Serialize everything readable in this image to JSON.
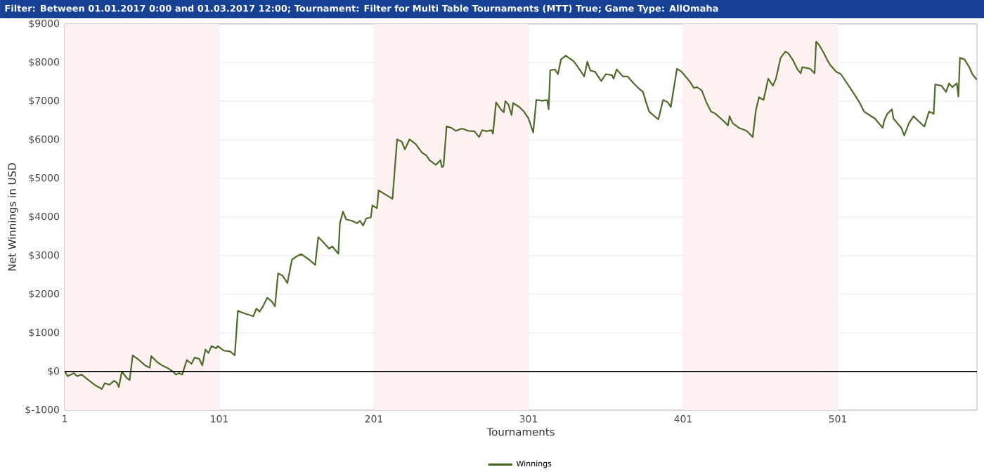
{
  "chart_data": {
    "type": "line",
    "title": "Filter: Between 01.01.2017 0:00 and 01.03.2017 12:00; Tournament: Filter for Multi Table Tournaments (MTT) True; Game Type: AllOmaha",
    "xlabel": "Tournaments",
    "ylabel": "Net Winnings in USD",
    "x": [
      1,
      3,
      7,
      9,
      12,
      17,
      21,
      25,
      27,
      30,
      33,
      35,
      36,
      38,
      41,
      43,
      45,
      49,
      53,
      56,
      57,
      61,
      64,
      68,
      71,
      73,
      75,
      77,
      80,
      83,
      85,
      88,
      90,
      92,
      94,
      96,
      99,
      100,
      104,
      108,
      111,
      113,
      117,
      123,
      125,
      127,
      129,
      132,
      135,
      137,
      139,
      142,
      145,
      148,
      151,
      154,
      159,
      163,
      165,
      168,
      172,
      174,
      178,
      179,
      181,
      183,
      187,
      190,
      192,
      194,
      196,
      199,
      200,
      203,
      204,
      209,
      213,
      216,
      219,
      221,
      224,
      228,
      232,
      235,
      237,
      241,
      244,
      245,
      246,
      248,
      251,
      254,
      258,
      262,
      266,
      269,
      271,
      274,
      277,
      278,
      280,
      283,
      285,
      286,
      288,
      290,
      291,
      295,
      298,
      301,
      304,
      306,
      310,
      313,
      314,
      315,
      318,
      320,
      322,
      325,
      327,
      330,
      333,
      337,
      339,
      341,
      344,
      348,
      351,
      355,
      356,
      358,
      362,
      365,
      369,
      372,
      375,
      377,
      379,
      383,
      385,
      388,
      391,
      393,
      397,
      400,
      405,
      408,
      410,
      413,
      416,
      419,
      422,
      427,
      430,
      431,
      433,
      437,
      442,
      446,
      448,
      450,
      453,
      456,
      459,
      461,
      464,
      467,
      469,
      472,
      475,
      477,
      478,
      483,
      486,
      487,
      489,
      492,
      494,
      496,
      500,
      503,
      507,
      511,
      515,
      518,
      521,
      525,
      530,
      531,
      533,
      536,
      537,
      542,
      544,
      547,
      550,
      553,
      557,
      560,
      563,
      564,
      568,
      571,
      573,
      575,
      578,
      579,
      580,
      583,
      586,
      588,
      591
    ],
    "series": [
      {
        "name": "Winnings",
        "color": "#4f6b2c",
        "values": [
          0,
          -120,
          -40,
          -120,
          -80,
          -240,
          -360,
          -450,
          -300,
          -340,
          -240,
          -300,
          -400,
          0,
          -160,
          -220,
          420,
          300,
          160,
          100,
          400,
          240,
          160,
          80,
          0,
          -80,
          -40,
          -80,
          300,
          200,
          360,
          330,
          160,
          570,
          480,
          660,
          600,
          660,
          540,
          520,
          420,
          1570,
          1510,
          1430,
          1630,
          1550,
          1670,
          1910,
          1810,
          1690,
          2540,
          2480,
          2290,
          2900,
          2980,
          3040,
          2900,
          2760,
          3480,
          3360,
          3180,
          3240,
          3050,
          3840,
          4140,
          3940,
          3900,
          3840,
          3900,
          3780,
          3960,
          3990,
          4300,
          4230,
          4690,
          4570,
          4470,
          6010,
          5950,
          5750,
          6010,
          5890,
          5670,
          5590,
          5470,
          5350,
          5470,
          5290,
          5320,
          6350,
          6310,
          6230,
          6290,
          6230,
          6220,
          6070,
          6250,
          6220,
          6250,
          6160,
          6970,
          6790,
          6710,
          7000,
          6910,
          6640,
          6950,
          6850,
          6730,
          6550,
          6190,
          7030,
          7010,
          7030,
          6790,
          7800,
          7820,
          7700,
          8080,
          8180,
          8120,
          8040,
          7880,
          7640,
          8020,
          7790,
          7760,
          7520,
          7700,
          7670,
          7580,
          7820,
          7640,
          7640,
          7460,
          7340,
          7240,
          6970,
          6730,
          6590,
          6530,
          7030,
          6970,
          6850,
          7840,
          7760,
          7520,
          7340,
          7360,
          7280,
          6970,
          6730,
          6670,
          6490,
          6370,
          6610,
          6430,
          6310,
          6230,
          6070,
          6760,
          7100,
          7030,
          7580,
          7400,
          7580,
          8120,
          8280,
          8240,
          8060,
          7820,
          7720,
          7880,
          7840,
          7720,
          8540,
          8450,
          8240,
          8080,
          7940,
          7760,
          7700,
          7460,
          7220,
          6970,
          6730,
          6650,
          6550,
          6310,
          6490,
          6670,
          6790,
          6550,
          6310,
          6110,
          6430,
          6610,
          6490,
          6340,
          6730,
          6670,
          7430,
          7400,
          7240,
          7460,
          7360,
          7460,
          7120,
          8120,
          8080,
          7880,
          7700,
          7550
        ]
      }
    ],
    "xlim": [
      1,
      591
    ],
    "ylim": [
      -1000,
      9000
    ],
    "xticks": [
      1,
      101,
      201,
      301,
      401,
      501
    ],
    "yticks": [
      {
        "value": -1000,
        "label": "$-1000"
      },
      {
        "value": 0,
        "label": "$0"
      },
      {
        "value": 1000,
        "label": "$1000"
      },
      {
        "value": 2000,
        "label": "$2000"
      },
      {
        "value": 3000,
        "label": "$3000"
      },
      {
        "value": 4000,
        "label": "$4000"
      },
      {
        "value": 5000,
        "label": "$5000"
      },
      {
        "value": 6000,
        "label": "$6000"
      },
      {
        "value": 7000,
        "label": "$7000"
      },
      {
        "value": 8000,
        "label": "$8000"
      },
      {
        "value": 9000,
        "label": "$9000"
      }
    ],
    "grid": true,
    "legend": "bottom",
    "ref_lines": [
      {
        "axis": "y",
        "value": 0,
        "color": "#000000"
      }
    ],
    "bands": [
      {
        "axis": "x",
        "from": 1,
        "to": 101,
        "color": "#fdf1f1"
      },
      {
        "axis": "x",
        "from": 201,
        "to": 301,
        "color": "#fdf1f1"
      },
      {
        "axis": "x",
        "from": 401,
        "to": 501,
        "color": "#fdf1f1"
      }
    ]
  }
}
